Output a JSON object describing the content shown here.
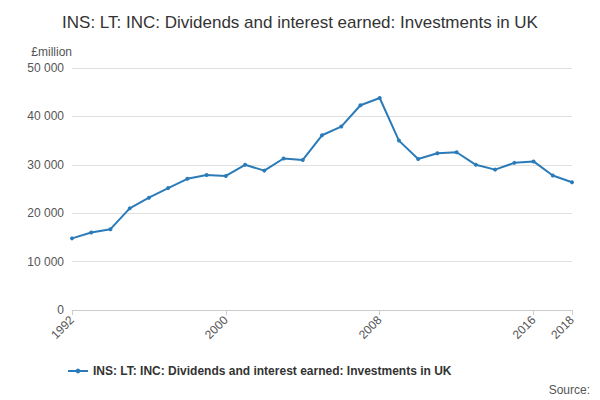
{
  "chart_data": {
    "type": "line",
    "title": "INS: LT: INC: Dividends and interest earned: Investments in UK",
    "y_label": "£million",
    "source": "Source:",
    "x": [
      1992,
      1993,
      1994,
      1995,
      1996,
      1997,
      1998,
      1999,
      2000,
      2001,
      2002,
      2003,
      2004,
      2005,
      2006,
      2007,
      2008,
      2009,
      2010,
      2011,
      2012,
      2013,
      2014,
      2015,
      2016,
      2017,
      2018
    ],
    "series": [
      {
        "name": "INS: LT: INC: Dividends and interest earned: Investments in UK",
        "color": "#2b7bb9",
        "marker": "circle",
        "values": [
          14800,
          16000,
          16700,
          21000,
          23200,
          25200,
          27100,
          27900,
          27700,
          30000,
          28800,
          31300,
          31000,
          36100,
          37900,
          42300,
          43800,
          35000,
          31200,
          32400,
          32600,
          30000,
          29000,
          30400,
          30700,
          27800,
          26400
        ]
      }
    ],
    "xlim": [
      1992,
      2018
    ],
    "xticks": [
      1992,
      2000,
      2008,
      2016,
      2018
    ],
    "ylim": [
      0,
      50000
    ],
    "yticks": [
      0,
      {
        "value": 10000,
        "label": "10 000"
      },
      {
        "value": 20000,
        "label": "20 000"
      },
      {
        "value": 30000,
        "label": "30 000"
      },
      {
        "value": 40000,
        "label": "40 000"
      },
      {
        "value": 50000,
        "label": "50 000"
      }
    ],
    "grid": true,
    "legend": "bottom"
  }
}
